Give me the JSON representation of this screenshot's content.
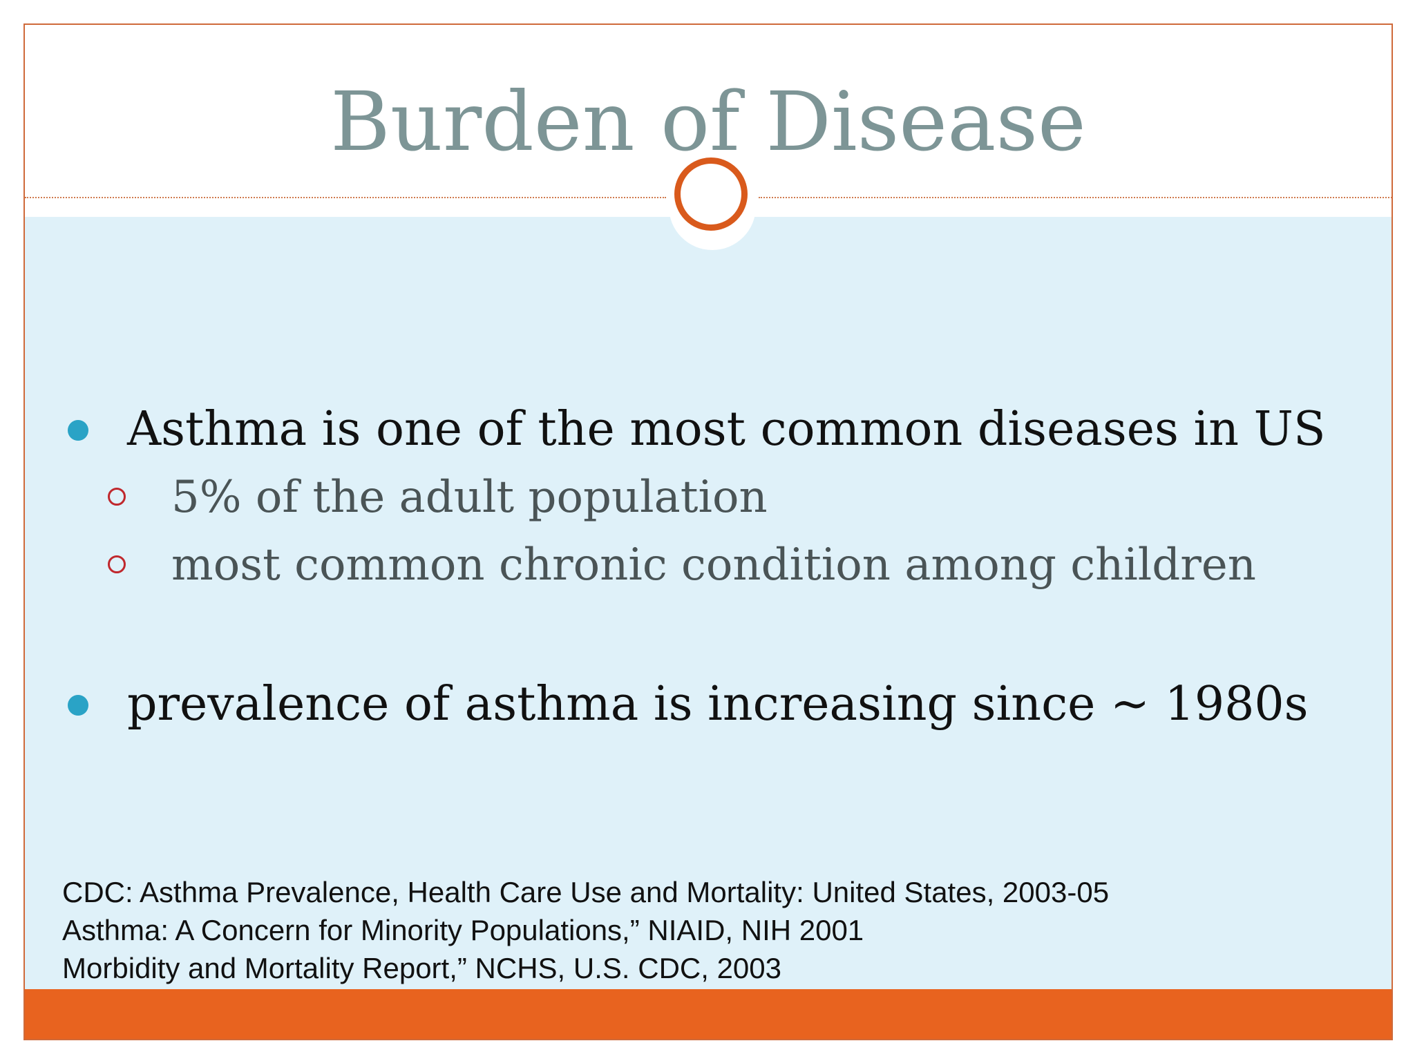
{
  "slide": {
    "title": "Burden of Disease",
    "bullets": [
      {
        "text": "Asthma is one of the most common diseases in US",
        "sub_bullets": [
          "5% of the adult population",
          "most common chronic condition among children"
        ]
      },
      {
        "text": "prevalence of asthma is increasing since ~ 1980s",
        "sub_bullets": []
      }
    ],
    "references": [
      "CDC: Asthma Prevalence, Health Care Use and Mortality: United States, 2003-05",
      "Asthma: A Concern for Minority Populations,” NIAID, NIH 2001",
      "Morbidity and Mortality Report,” NCHS, U.S. CDC, 2003"
    ]
  },
  "theme": {
    "title_color": "#7d9596",
    "content_background": "#dff1f9",
    "accent_orange": "#e8631f",
    "bullet_dot_color": "#2aa3c6",
    "sub_bullet_ring_color": "#c0282d"
  }
}
